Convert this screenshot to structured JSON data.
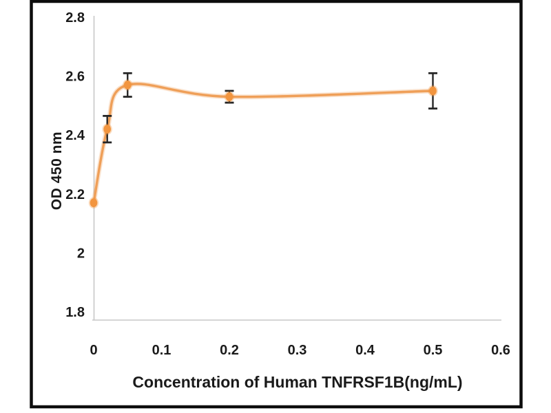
{
  "figure": {
    "background_color": "#ffffff",
    "frame_color": "#0d0d0d",
    "plot_background": "#ffffff"
  },
  "chart_data": {
    "type": "line",
    "title": "",
    "xlabel": "Concentration of Human TNFRSF1B(ng/mL)",
    "ylabel": "OD 450 nm",
    "x": [
      0,
      0.02,
      0.05,
      0.2,
      0.5
    ],
    "y": [
      2.17,
      2.42,
      2.57,
      2.53,
      2.55
    ],
    "yerr": [
      0,
      0.045,
      0.04,
      0.02,
      0.06
    ],
    "xlim": [
      0,
      0.6
    ],
    "ylim": [
      1.8,
      2.8
    ],
    "x_tick_labels": [
      "0",
      "0.1",
      "0.2",
      "0.3",
      "0.4",
      "0.5",
      "0.6"
    ],
    "y_tick_labels": [
      "1.8",
      "2",
      "2.2",
      "2.4",
      "2.6",
      "2.8"
    ],
    "grid": false,
    "legend": null,
    "smooth_line": true,
    "marker_shape": "ellipse",
    "line_color": "#ef9f58",
    "marker_color": "#f2953f",
    "error_bar_color": "#262626",
    "axis_line_color": "#c7c7c7",
    "tick_label_color": "#1a1a1a"
  }
}
